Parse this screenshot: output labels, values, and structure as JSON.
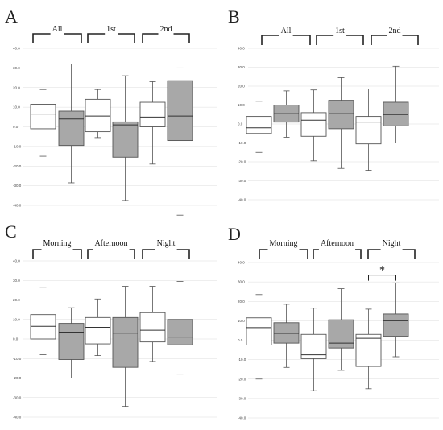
{
  "colors": {
    "white_box": "#ffffff",
    "gray_box": "#a8a8a8",
    "line": "#555555",
    "grid": "#dddddd"
  },
  "chart_data": [
    {
      "type": "boxplot",
      "panel": "A",
      "ylim": [
        -40,
        40
      ],
      "yticks": [
        "40.0",
        "30.0",
        "20.0",
        "10.0",
        "0.0",
        "-10.0",
        "-20.0",
        "-30.0",
        "-40.0"
      ],
      "groups": [
        "All",
        "1st",
        "2nd"
      ],
      "boxes": [
        {
          "group": "All",
          "fill": "white",
          "whisker_low": -15,
          "q1": -1,
          "median": 6.5,
          "q3": 11.5,
          "whisker_high": 19
        },
        {
          "group": "All",
          "fill": "gray",
          "whisker_low": -28.5,
          "q1": -9.5,
          "median": 4,
          "q3": 8,
          "whisker_high": 32
        },
        {
          "group": "1st",
          "fill": "white",
          "whisker_low": -5.5,
          "q1": -2.5,
          "median": 5.5,
          "q3": 14,
          "whisker_high": 19
        },
        {
          "group": "1st",
          "fill": "gray",
          "whisker_low": -37.5,
          "q1": -15.5,
          "median": 1,
          "q3": 2.5,
          "whisker_high": 26
        },
        {
          "group": "2nd",
          "fill": "white",
          "whisker_low": -19,
          "q1": 0,
          "median": 5,
          "q3": 12.5,
          "whisker_high": 23
        },
        {
          "group": "2nd",
          "fill": "gray",
          "whisker_low": -45,
          "q1": -7,
          "median": 5.5,
          "q3": 23.5,
          "whisker_high": 30
        }
      ],
      "significance": []
    },
    {
      "type": "boxplot",
      "panel": "B",
      "ylim": [
        -40,
        40
      ],
      "yticks": [
        "40.0",
        "30.0",
        "20.0",
        "10.0",
        "0.0",
        "-10.0",
        "-20.0",
        "-30.0",
        "-40.0"
      ],
      "groups": [
        "All",
        "1st",
        "2nd"
      ],
      "boxes": [
        {
          "group": "All",
          "fill": "white",
          "whisker_low": -15,
          "q1": -5,
          "median": -2,
          "q3": 4,
          "whisker_high": 12
        },
        {
          "group": "All",
          "fill": "gray",
          "whisker_low": -7,
          "q1": 1,
          "median": 5.5,
          "q3": 10,
          "whisker_high": 17.5
        },
        {
          "group": "1st",
          "fill": "white",
          "whisker_low": -19.5,
          "q1": -6.5,
          "median": 2,
          "q3": 6,
          "whisker_high": 18
        },
        {
          "group": "1st",
          "fill": "gray",
          "whisker_low": -23.5,
          "q1": -2.5,
          "median": 5.5,
          "q3": 12.5,
          "whisker_high": 24.5
        },
        {
          "group": "2nd",
          "fill": "white",
          "whisker_low": -24.5,
          "q1": -10.5,
          "median": 1,
          "q3": 4,
          "whisker_high": 18.5
        },
        {
          "group": "2nd",
          "fill": "gray",
          "whisker_low": -10,
          "q1": -1,
          "median": 5,
          "q3": 11.5,
          "whisker_high": 30.5
        }
      ],
      "significance": []
    },
    {
      "type": "boxplot",
      "panel": "C",
      "ylim": [
        -40,
        40
      ],
      "yticks": [
        "40.0",
        "30.0",
        "20.0",
        "10.0",
        "0.0",
        "-10.0",
        "-20.0",
        "-30.0",
        "-40.0"
      ],
      "groups": [
        "Morning",
        "Afternoon",
        "Night"
      ],
      "boxes": [
        {
          "group": "Morning",
          "fill": "white",
          "whisker_low": -8,
          "q1": 0,
          "median": 6.5,
          "q3": 12.5,
          "whisker_high": 26.5
        },
        {
          "group": "Morning",
          "fill": "gray",
          "whisker_low": -20,
          "q1": -10.5,
          "median": 3.5,
          "q3": 8,
          "whisker_high": 16
        },
        {
          "group": "Afternoon",
          "fill": "white",
          "whisker_low": -8.5,
          "q1": -2.5,
          "median": 6,
          "q3": 11,
          "whisker_high": 20.5
        },
        {
          "group": "Afternoon",
          "fill": "gray",
          "whisker_low": -34.5,
          "q1": -14.5,
          "median": 3,
          "q3": 11,
          "whisker_high": 27
        },
        {
          "group": "Night",
          "fill": "white",
          "whisker_low": -11.5,
          "q1": -1.5,
          "median": 4.5,
          "q3": 13.5,
          "whisker_high": 27
        },
        {
          "group": "Night",
          "fill": "gray",
          "whisker_low": -18,
          "q1": -3,
          "median": 1,
          "q3": 10,
          "whisker_high": 29.5
        }
      ],
      "significance": []
    },
    {
      "type": "boxplot",
      "panel": "D",
      "ylim": [
        -40,
        40
      ],
      "yticks": [
        "40.0",
        "30.0",
        "20.0",
        "10.0",
        "0.0",
        "-10.0",
        "-20.0",
        "-30.0",
        "-40.0"
      ],
      "groups": [
        "Morning",
        "Afternoon",
        "Night"
      ],
      "boxes": [
        {
          "group": "Morning",
          "fill": "white",
          "whisker_low": -20,
          "q1": -2.5,
          "median": 6.5,
          "q3": 11.5,
          "whisker_high": 23.5
        },
        {
          "group": "Morning",
          "fill": "gray",
          "whisker_low": -14,
          "q1": -1.5,
          "median": 3.5,
          "q3": 9,
          "whisker_high": 18.5
        },
        {
          "group": "Afternoon",
          "fill": "white",
          "whisker_low": -26,
          "q1": -9.5,
          "median": -7.5,
          "q3": 3,
          "whisker_high": 16.5
        },
        {
          "group": "Afternoon",
          "fill": "gray",
          "whisker_low": -15.5,
          "q1": -4,
          "median": -1.5,
          "q3": 10.5,
          "whisker_high": 26.5
        },
        {
          "group": "Night",
          "fill": "white",
          "whisker_low": -25,
          "q1": -13.5,
          "median": 1,
          "q3": 3,
          "whisker_high": 16
        },
        {
          "group": "Night",
          "fill": "gray",
          "whisker_low": -8.5,
          "q1": 2,
          "median": 10,
          "q3": 13.5,
          "whisker_high": 29.5
        }
      ],
      "significance": [
        {
          "group": "Night",
          "label": "*"
        }
      ]
    }
  ]
}
